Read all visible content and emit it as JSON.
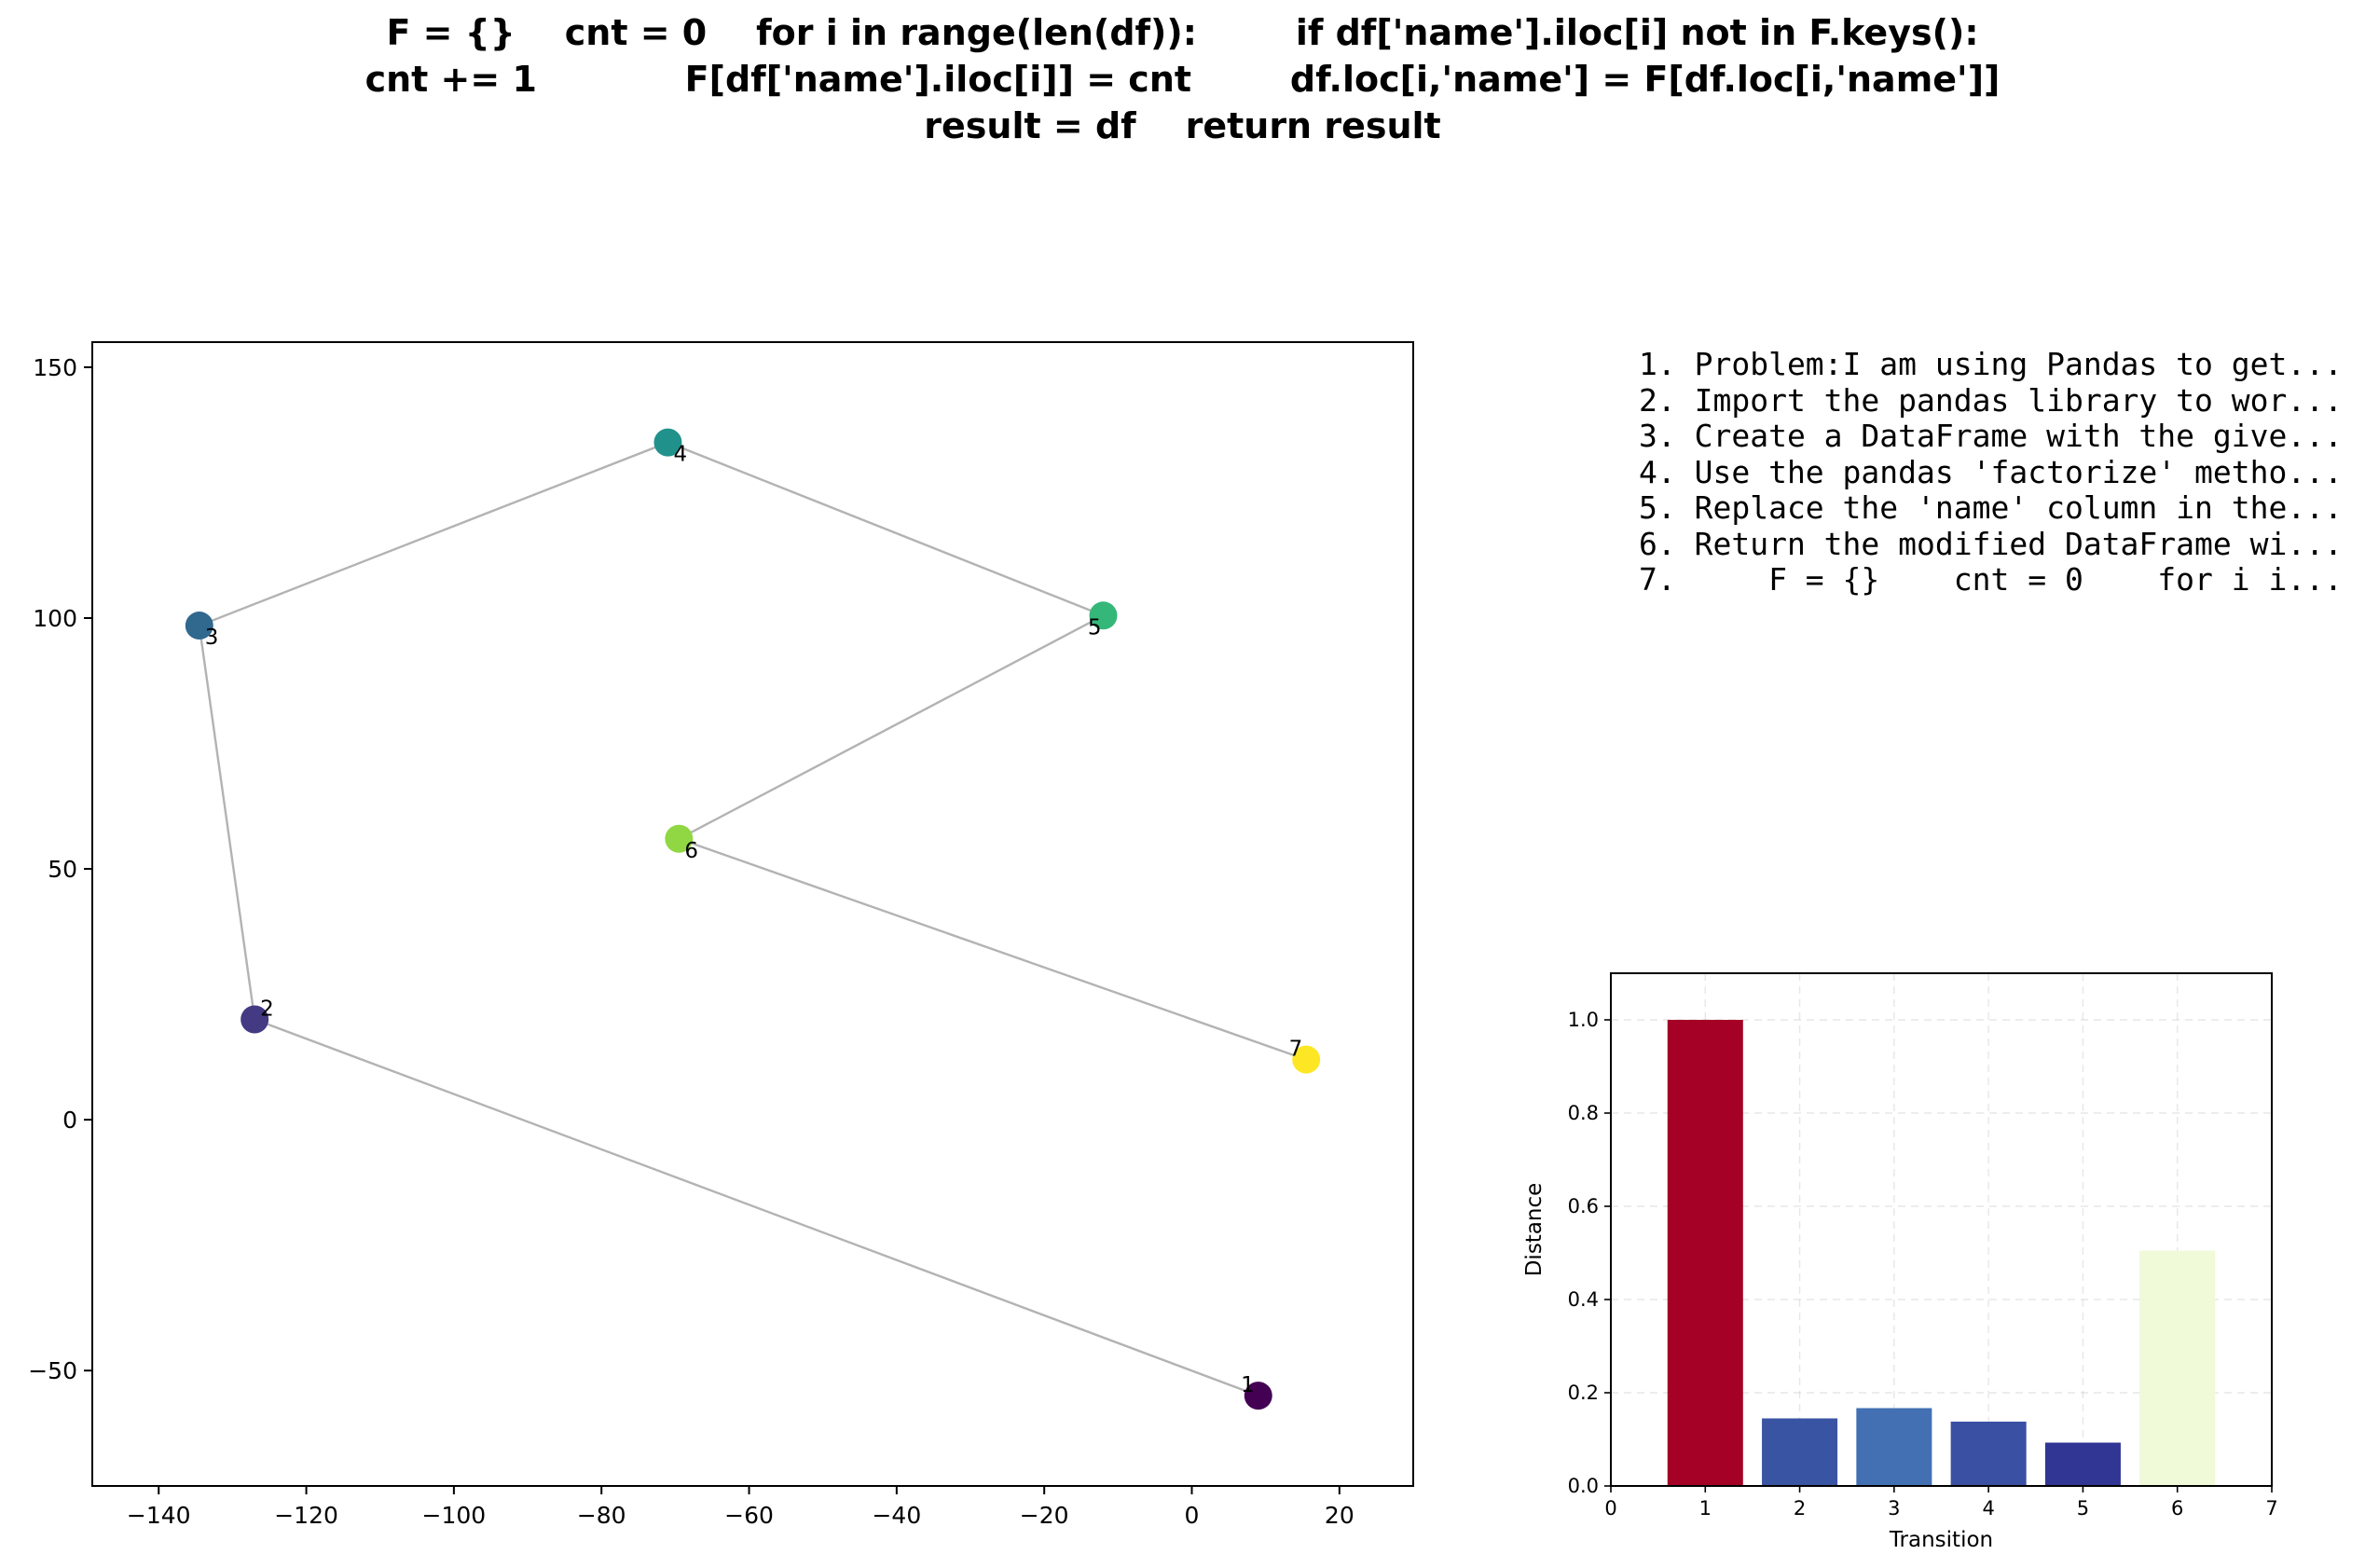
{
  "title_lines": [
    "F = {}    cnt = 0    for i in range(len(df)):        if df['name'].iloc[i] not in F.keys():",
    "cnt += 1            F[df['name'].iloc[i]] = cnt        df.loc[i,'name'] = F[df.loc[i,'name']]",
    "result = df    return result"
  ],
  "steps": [
    "1. Problem:I am using Pandas to get...",
    "2. Import the pandas library to wor...",
    "3. Create a DataFrame with the give...",
    "4. Use the pandas 'factorize' metho...",
    "5. Replace the 'name' column in the...",
    "6. Return the modified DataFrame wi...",
    "7.     F = {}    cnt = 0    for i i..."
  ],
  "chart_data": [
    {
      "type": "scatter",
      "connected": true,
      "line_color": "#b3b3b3",
      "points": [
        {
          "label": "1",
          "x": 9,
          "y": -55,
          "color": "#440154"
        },
        {
          "label": "2",
          "x": -127,
          "y": 20,
          "color": "#443983"
        },
        {
          "label": "3",
          "x": -134.5,
          "y": 98.5,
          "color": "#31688e"
        },
        {
          "label": "4",
          "x": -71,
          "y": 135,
          "color": "#21918c"
        },
        {
          "label": "5",
          "x": -12,
          "y": 100.5,
          "color": "#35b779"
        },
        {
          "label": "6",
          "x": -69.5,
          "y": 56,
          "color": "#90d743"
        },
        {
          "label": "7",
          "x": 15.5,
          "y": 12,
          "color": "#fde725"
        }
      ],
      "xlim": [
        -149,
        30
      ],
      "ylim": [
        -73,
        155
      ],
      "xticks": [
        -140,
        -120,
        -100,
        -80,
        -60,
        -40,
        -20,
        0,
        20
      ],
      "yticks": [
        -50,
        0,
        50,
        100,
        150
      ],
      "xtick_labels": [
        "−140",
        "−120",
        "−100",
        "−80",
        "−60",
        "−40",
        "−20",
        "0",
        "20"
      ],
      "ytick_labels": [
        "−50",
        "0",
        "50",
        "100",
        "150"
      ],
      "xlabel": "",
      "ylabel": "",
      "grid": false
    },
    {
      "type": "bar",
      "categories": [
        1,
        2,
        3,
        4,
        5,
        6
      ],
      "values": [
        1.0,
        0.145,
        0.167,
        0.138,
        0.093,
        0.505
      ],
      "colors": [
        "#a50026",
        "#3a54a4",
        "#4270b3",
        "#3a50a3",
        "#313695",
        "#f0f9d8"
      ],
      "xlabel": "Transition",
      "ylabel": "Distance",
      "xlim": [
        0,
        7
      ],
      "ylim": [
        0,
        1.1
      ],
      "xticks": [
        0,
        1,
        2,
        3,
        4,
        5,
        6,
        7
      ],
      "yticks": [
        0.0,
        0.2,
        0.4,
        0.6,
        0.8,
        1.0
      ],
      "xtick_labels": [
        "0",
        "1",
        "2",
        "3",
        "4",
        "5",
        "6",
        "7"
      ],
      "ytick_labels": [
        "0.0",
        "0.2",
        "0.4",
        "0.6",
        "0.8",
        "1.0"
      ],
      "grid": true
    }
  ]
}
